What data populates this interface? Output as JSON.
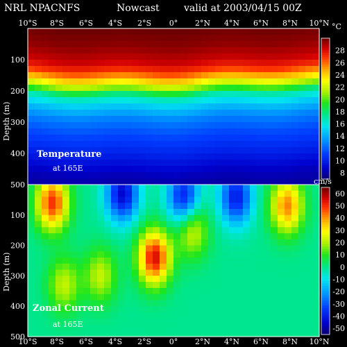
{
  "header": {
    "model": "NRL NPACNFS",
    "product": "Nowcast",
    "valid": "valid at 2003/04/15 00Z"
  },
  "chart_data": [
    {
      "type": "heatmap",
      "label_line1": "Temperature",
      "label_line2": "at 165E",
      "ylabel": "Depth (m)",
      "x_ticks": [
        "10°S",
        "8°S",
        "6°S",
        "4°S",
        "2°S",
        "0°",
        "2°N",
        "4°N",
        "6°N",
        "8°N",
        "10°N"
      ],
      "y_ticks": [
        "100",
        "200",
        "300",
        "400",
        "500"
      ],
      "ylim": [
        0,
        500
      ],
      "colorbar_unit": "°C",
      "colorbar_ticks": [
        "8",
        "10",
        "12",
        "14",
        "16",
        "18",
        "20",
        "22",
        "24",
        "26",
        "28"
      ],
      "colorbar_range": [
        7,
        30
      ],
      "profile_depth_m": [
        0,
        50,
        100,
        130,
        160,
        190,
        210,
        240,
        280,
        330,
        400,
        460,
        500
      ],
      "profile_temp_c": [
        30,
        29.5,
        28.5,
        27,
        24,
        20,
        17,
        15,
        13,
        11.5,
        10,
        8.5,
        8
      ]
    },
    {
      "type": "heatmap",
      "label_line1": "Zonal Current",
      "label_line2": "at 165E",
      "ylabel": "Depth (m)",
      "x_ticks": [
        "10°S",
        "8°S",
        "6°S",
        "4°S",
        "2°S",
        "0°",
        "2°N",
        "4°N",
        "6°N",
        "8°N",
        "10°N"
      ],
      "y_ticks": [
        "100",
        "200",
        "300",
        "400",
        "500"
      ],
      "ylim": [
        0,
        500
      ],
      "colorbar_unit": "cm/s",
      "colorbar_ticks": [
        "60",
        "50",
        "40",
        "30",
        "20",
        "10",
        "0",
        "-10",
        "-20",
        "-30",
        "-40",
        "-50"
      ],
      "colorbar_range": [
        -55,
        65
      ],
      "features": [
        {
          "lat": -8.3,
          "depth_m": 60,
          "value": 50
        },
        {
          "lat": -5.0,
          "depth_m": 300,
          "value": 22
        },
        {
          "lat": -3.5,
          "depth_m": 30,
          "value": -45
        },
        {
          "lat": -1.3,
          "depth_m": 240,
          "value": 55
        },
        {
          "lat": 0.7,
          "depth_m": 40,
          "value": -40
        },
        {
          "lat": 4.3,
          "depth_m": 40,
          "value": -40
        },
        {
          "lat": 7.8,
          "depth_m": 70,
          "value": 42
        },
        {
          "lat": -7.5,
          "depth_m": 330,
          "value": 22
        },
        {
          "lat": 1.3,
          "depth_m": 150,
          "value": 25
        }
      ]
    }
  ]
}
